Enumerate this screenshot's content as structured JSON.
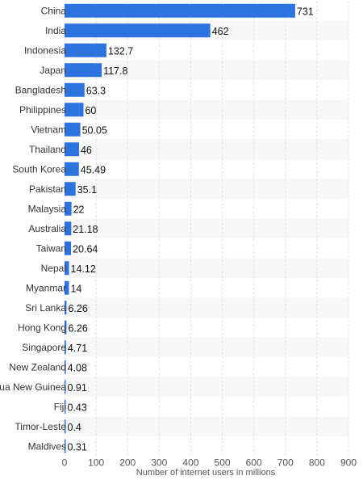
{
  "chart_data": {
    "type": "bar",
    "orientation": "horizontal",
    "categories": [
      "China",
      "India",
      "Indonesia",
      "Japan",
      "Bangladesh",
      "Philippines",
      "Vietnam",
      "Thailand",
      "South Korea",
      "Pakistan",
      "Malaysia",
      "Australia",
      "Taiwan",
      "Nepal",
      "Myanmar",
      "Sri Lanka",
      "Hong Kong",
      "Singapore",
      "New Zealand",
      "Papua New Guinea",
      "Fiji",
      "Timor-Leste",
      "Maldives"
    ],
    "category_labels": [
      "China",
      "India",
      "Indonesia",
      "Japan",
      "Bangladesh",
      "Philippines",
      "Vietnam",
      "Thailand",
      "South Korea",
      "Pakistan",
      "Malaysia",
      "Australia",
      "Taiwan",
      "Nepal",
      "Myanmar",
      "Sri Lanka",
      "Hong Kong",
      "Singapore",
      "New Zealand",
      "Papua New Guinea",
      "Fiji",
      "Timor-Leste",
      "Maldives"
    ],
    "values": [
      731,
      462,
      132.7,
      117.8,
      63.3,
      60,
      50.05,
      46,
      45.49,
      35.1,
      22,
      21.18,
      20.64,
      14.12,
      14,
      6.26,
      6.26,
      4.71,
      4.08,
      0.91,
      0.43,
      0.4,
      0.31
    ],
    "value_labels": [
      "731",
      "462",
      "132.7",
      "117.8",
      "63.3",
      "60",
      "50.05",
      "46",
      "45.49",
      "35.1",
      "22",
      "21.18",
      "20.64",
      "14.12",
      "14",
      "6.26",
      "6.26",
      "4.71",
      "4.08",
      "0.91",
      "0.43",
      "0.4",
      "0.31"
    ],
    "xlabel": "Number of internet users in millions",
    "ylabel": "",
    "xlim": [
      0,
      900
    ],
    "xticks": [
      0,
      100,
      200,
      300,
      400,
      500,
      600,
      700,
      800,
      900
    ],
    "xtick_labels": [
      "0",
      "100",
      "200",
      "300",
      "400",
      "500",
      "600",
      "700",
      "800",
      "900"
    ],
    "grid": true,
    "bar_color": "#2c73e0",
    "stripe_color": "#f7f7f7"
  }
}
